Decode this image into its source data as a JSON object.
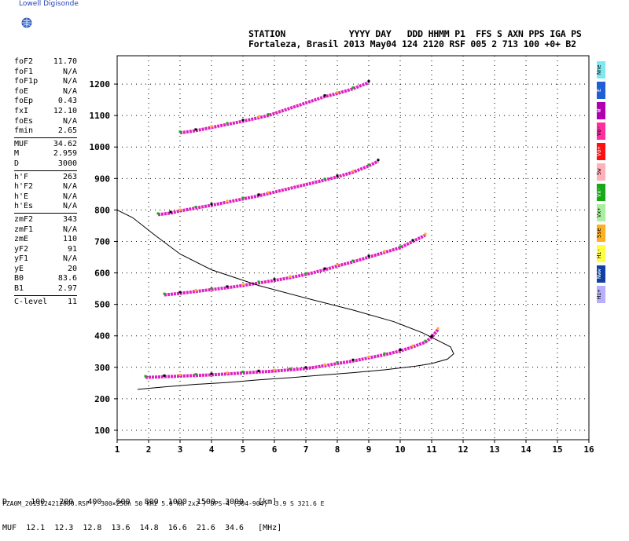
{
  "brand": {
    "name": "Lowell Digisonde",
    "logo_icon": "globe-icon"
  },
  "header": {
    "line1": "STATION            YYYY DAY   DDD HHMM P1  FFS S AXN PPS IGA PS",
    "line2": "Fortaleza, Brasil 2013 May04 124 2120 RSF 005 2 713 100 +0+ B2"
  },
  "params": [
    {
      "name": "foF2",
      "value": "11.70"
    },
    {
      "name": "foF1",
      "value": "N/A"
    },
    {
      "name": "foF1p",
      "value": "N/A"
    },
    {
      "name": "foE",
      "value": "N/A"
    },
    {
      "name": "foEp",
      "value": "0.43"
    },
    {
      "name": "fxI",
      "value": "12.10"
    },
    {
      "name": "foEs",
      "value": "N/A"
    },
    {
      "name": "fmin",
      "value": "2.65",
      "sep": true
    },
    {
      "name": "MUF",
      "value": "34.62"
    },
    {
      "name": "M",
      "value": "2.959"
    },
    {
      "name": "D",
      "value": "3000",
      "sep": true
    },
    {
      "name": "h'F",
      "value": "263"
    },
    {
      "name": "h'F2",
      "value": "N/A"
    },
    {
      "name": "h'E",
      "value": "N/A"
    },
    {
      "name": "h'Es",
      "value": "N/A",
      "sep": true
    },
    {
      "name": "zmF2",
      "value": "343"
    },
    {
      "name": "zmF1",
      "value": "N/A"
    },
    {
      "name": "zmE",
      "value": "110"
    },
    {
      "name": "yF2",
      "value": "91"
    },
    {
      "name": "yF1",
      "value": "N/A"
    },
    {
      "name": "yE",
      "value": "20"
    },
    {
      "name": "B0",
      "value": "83.6"
    },
    {
      "name": "B1",
      "value": "2.97",
      "sep": true
    },
    {
      "name": "C-level",
      "value": "11"
    }
  ],
  "legend": [
    {
      "label": "Nne",
      "color": "#7ee8f0"
    },
    {
      "label": "E",
      "color": "#1e5fd8"
    },
    {
      "label": "W",
      "color": "#b000b0"
    },
    {
      "label": "Vo-",
      "color": "#ff2fa0"
    },
    {
      "label": "Vo+",
      "color": "#ff1010"
    },
    {
      "label": "Sw",
      "color": "#ffb0b8"
    },
    {
      "label": "Vx-",
      "color": "#18a818"
    },
    {
      "label": "Vx+",
      "color": "#a8f0a0"
    },
    {
      "label": "Sse",
      "color": "#ffb020"
    },
    {
      "label": "Hi-",
      "color": "#ffff40"
    },
    {
      "label": "Nww",
      "color": "#1040a0"
    },
    {
      "label": "Hi+",
      "color": "#b8b0ff"
    }
  ],
  "muf_table": {
    "row1": "D     100   200   400   600   800  1000  1500  3000   [km]",
    "row2": "MUF  12.1  12.3  12.8  13.6  14.8  16.6  21.6  34.6   [MHz]"
  },
  "footer": "FZA0M_2013124212000.RSF / 300×256h 50 kHz 5.0 km 2x2 / DPS-4 (904-904)  3.9 S 321.6 E",
  "chart_data": {
    "type": "scatter",
    "title": "",
    "xlabel": "",
    "ylabel": "",
    "xlim": [
      1,
      16
    ],
    "ylim": [
      70,
      1290
    ],
    "xticks": [
      1,
      2,
      3,
      4,
      5,
      6,
      7,
      8,
      9,
      10,
      11,
      12,
      13,
      14,
      15,
      16
    ],
    "yticks": [
      100,
      200,
      300,
      400,
      500,
      600,
      700,
      800,
      900,
      1000,
      1100,
      1200
    ],
    "grid": true,
    "series": [
      {
        "name": "",
        "kind": "echo",
        "color": "#e020c0",
        "x": [
          1.9,
          2.5,
          3.0,
          3.5,
          4.0,
          4.5,
          5.0,
          5.5,
          6.0,
          6.5,
          7.0,
          7.6,
          8.0,
          8.5,
          9.0,
          9.5,
          10.0,
          10.4,
          10.8,
          11.0,
          11.2
        ],
        "y": [
          268,
          270,
          272,
          274,
          276,
          279,
          282,
          285,
          288,
          292,
          296,
          305,
          312,
          320,
          330,
          340,
          352,
          365,
          380,
          395,
          420
        ]
      },
      {
        "name": "",
        "kind": "echo",
        "color": "#e020c0",
        "x": [
          2.5,
          3.0,
          3.5,
          4.0,
          4.5,
          5.0,
          5.5,
          6.0,
          6.5,
          7.0,
          7.6,
          8.0,
          8.5,
          9.0,
          9.5,
          10.0,
          10.4,
          10.8
        ],
        "y": [
          530,
          535,
          541,
          547,
          553,
          560,
          568,
          576,
          585,
          595,
          610,
          622,
          635,
          650,
          665,
          680,
          700,
          720
        ]
      },
      {
        "name": "",
        "kind": "echo",
        "color": "#e020c0",
        "x": [
          2.3,
          2.7,
          3.0,
          3.5,
          4.0,
          4.5,
          5.0,
          5.5,
          5.8,
          7.6,
          8.0,
          8.5,
          9.0,
          9.3
        ],
        "y": [
          785,
          790,
          797,
          806,
          815,
          825,
          835,
          845,
          852,
          895,
          905,
          920,
          940,
          955
        ]
      },
      {
        "name": "",
        "kind": "echo",
        "color": "#e020c0",
        "x": [
          3.0,
          3.5,
          4.0,
          4.5,
          5.0,
          5.5,
          5.8,
          7.6,
          8.0,
          8.5,
          9.0
        ],
        "y": [
          1045,
          1052,
          1062,
          1072,
          1082,
          1093,
          1100,
          1160,
          1170,
          1185,
          1205
        ]
      },
      {
        "name": "",
        "kind": "profile",
        "color": "#000000",
        "x": [
          1.65,
          2.5,
          3.5,
          4.5,
          5.5,
          6.5,
          7.5,
          8.5,
          9.5,
          10.5,
          11.0,
          11.5,
          11.7,
          11.6,
          11.2,
          10.7,
          9.8,
          8.5,
          7.0,
          5.5,
          4.0,
          3.0,
          2.2,
          1.5,
          1.0
        ],
        "y": [
          230,
          238,
          246,
          252,
          260,
          267,
          275,
          283,
          292,
          304,
          312,
          326,
          343,
          365,
          385,
          410,
          445,
          482,
          520,
          560,
          610,
          660,
          720,
          775,
          800
        ]
      }
    ]
  }
}
